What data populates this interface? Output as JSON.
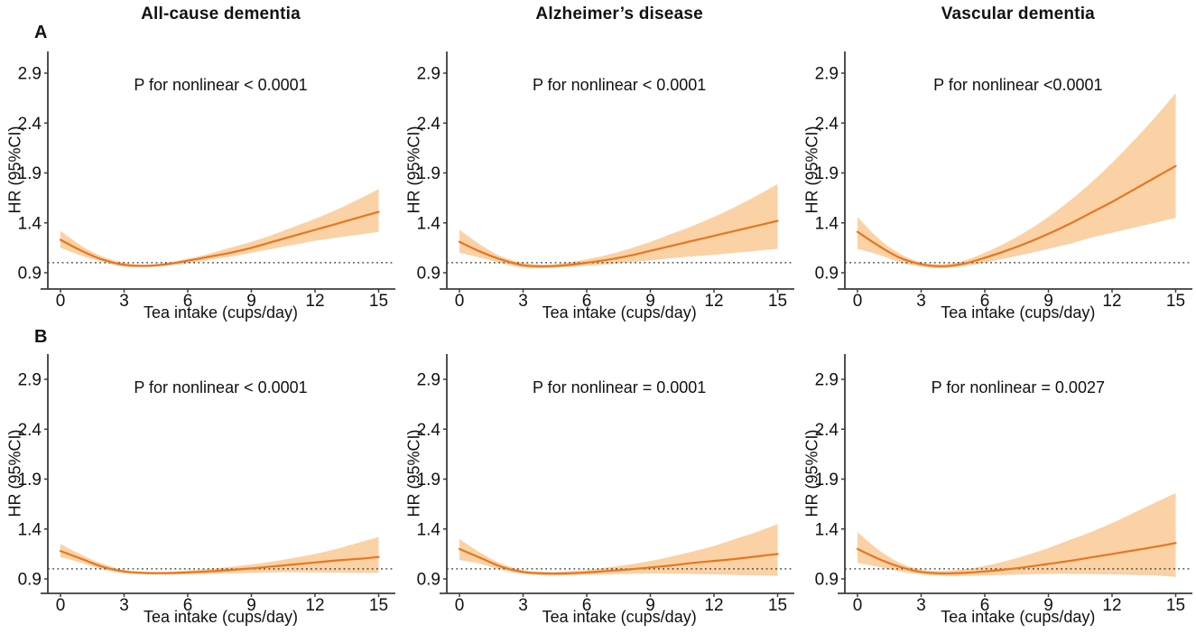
{
  "figure": {
    "background": "#ffffff",
    "section_labels": [
      "A",
      "B"
    ],
    "column_titles": [
      "All-cause dementia",
      "Alzheimer’s disease",
      "Vascular dementia"
    ],
    "colors": {
      "curve": "#e8761f",
      "band": "#fad2a6",
      "ref_line": "#2b2b2b",
      "axis": "#3d3d3d",
      "text": "#111111"
    }
  },
  "chart_data": [
    {
      "id": "A-all-cause-dementia",
      "row": "A",
      "type": "line",
      "column_title": "All-cause dementia",
      "p_label": "P for nonlinear < 0.0001",
      "xlabel": "Tea intake (cups/day)",
      "ylabel": "HR (95%CI)",
      "xticks": [
        0,
        3,
        6,
        9,
        12,
        15
      ],
      "ytick_values": [
        0.9,
        1.4,
        1.9,
        2.4,
        2.9
      ],
      "ytick_labels": [
        "0.9",
        "1.4",
        "1.9",
        "2.4",
        "2.9"
      ],
      "xlim": [
        -0.7,
        15.7
      ],
      "ylim": [
        0.74,
        3.12
      ],
      "ref_line": 1.0,
      "x": [
        0,
        1,
        2,
        3,
        4,
        5,
        6,
        7,
        8,
        9,
        10,
        11,
        12,
        13,
        14,
        15
      ],
      "hr": [
        1.23,
        1.12,
        1.03,
        0.98,
        0.97,
        0.985,
        1.02,
        1.06,
        1.1,
        1.15,
        1.21,
        1.27,
        1.33,
        1.39,
        1.45,
        1.51
      ],
      "ci_high": [
        1.32,
        1.17,
        1.06,
        1.0,
        0.98,
        1.0,
        1.04,
        1.09,
        1.15,
        1.21,
        1.28,
        1.36,
        1.44,
        1.53,
        1.63,
        1.74
      ],
      "ci_low": [
        1.15,
        1.07,
        1.01,
        0.96,
        0.955,
        0.97,
        0.995,
        1.03,
        1.06,
        1.1,
        1.14,
        1.18,
        1.22,
        1.25,
        1.28,
        1.31
      ]
    },
    {
      "id": "A-alzheimers-disease",
      "row": "A",
      "type": "line",
      "column_title": "Alzheimer’s disease",
      "p_label": "P for nonlinear < 0.0001",
      "xlabel": "Tea intake (cups/day)",
      "ylabel": "HR (95%CI)",
      "xticks": [
        0,
        3,
        6,
        9,
        12,
        15
      ],
      "ytick_values": [
        0.9,
        1.4,
        1.9,
        2.4,
        2.9
      ],
      "ytick_labels": [
        "0.9",
        "1.4",
        "1.9",
        "2.4",
        "2.9"
      ],
      "xlim": [
        -0.7,
        15.7
      ],
      "ylim": [
        0.74,
        3.12
      ],
      "ref_line": 1.0,
      "x": [
        0,
        1,
        2,
        3,
        4,
        5,
        6,
        7,
        8,
        9,
        10,
        11,
        12,
        13,
        14,
        15
      ],
      "hr": [
        1.21,
        1.11,
        1.03,
        0.975,
        0.965,
        0.975,
        1.0,
        1.03,
        1.07,
        1.12,
        1.17,
        1.22,
        1.27,
        1.32,
        1.37,
        1.42
      ],
      "ci_high": [
        1.33,
        1.18,
        1.06,
        1.0,
        0.98,
        1.0,
        1.035,
        1.08,
        1.14,
        1.21,
        1.29,
        1.37,
        1.46,
        1.56,
        1.67,
        1.79
      ],
      "ci_low": [
        1.1,
        1.05,
        0.995,
        0.95,
        0.945,
        0.955,
        0.97,
        0.985,
        1.005,
        1.025,
        1.045,
        1.065,
        1.08,
        1.1,
        1.12,
        1.14
      ]
    },
    {
      "id": "A-vascular-dementia",
      "row": "A",
      "type": "line",
      "column_title": "Vascular dementia",
      "p_label": "P for nonlinear <0.0001",
      "xlabel": "Tea intake (cups/day)",
      "ylabel": "HR (95%CI)",
      "xticks": [
        0,
        3,
        6,
        9,
        12,
        15
      ],
      "ytick_values": [
        0.9,
        1.4,
        1.9,
        2.4,
        2.9
      ],
      "ytick_labels": [
        "0.9",
        "1.4",
        "1.9",
        "2.4",
        "2.9"
      ],
      "xlim": [
        -0.7,
        15.7
      ],
      "ylim": [
        0.74,
        3.12
      ],
      "ref_line": 1.0,
      "x": [
        0,
        1,
        2,
        3,
        4,
        5,
        6,
        7,
        8,
        9,
        10,
        11,
        12,
        13,
        14,
        15
      ],
      "hr": [
        1.31,
        1.17,
        1.05,
        0.985,
        0.965,
        0.99,
        1.05,
        1.12,
        1.2,
        1.29,
        1.39,
        1.5,
        1.61,
        1.73,
        1.85,
        1.97
      ],
      "ci_high": [
        1.46,
        1.24,
        1.09,
        1.005,
        0.985,
        1.02,
        1.1,
        1.2,
        1.32,
        1.46,
        1.62,
        1.8,
        2.0,
        2.22,
        2.45,
        2.7
      ],
      "ci_low": [
        1.14,
        1.08,
        1.005,
        0.96,
        0.945,
        0.965,
        1.0,
        1.045,
        1.09,
        1.14,
        1.19,
        1.25,
        1.3,
        1.35,
        1.4,
        1.45
      ]
    },
    {
      "id": "B-all-cause-dementia",
      "row": "B",
      "type": "line",
      "column_title": "All-cause dementia",
      "p_label": "P for nonlinear < 0.0001",
      "xlabel": "Tea intake (cups/day)",
      "ylabel": "HR (95%CI)",
      "xticks": [
        0,
        3,
        6,
        9,
        12,
        15
      ],
      "ytick_values": [
        0.9,
        1.4,
        1.9,
        2.4,
        2.9
      ],
      "ytick_labels": [
        "0.9",
        "1.4",
        "1.9",
        "2.4",
        "2.9"
      ],
      "xlim": [
        -0.7,
        15.7
      ],
      "ylim": [
        0.74,
        3.12
      ],
      "ref_line": 1.0,
      "x": [
        0,
        1,
        2,
        3,
        4,
        5,
        6,
        7,
        8,
        9,
        10,
        11,
        12,
        13,
        14,
        15
      ],
      "hr": [
        1.18,
        1.1,
        1.02,
        0.975,
        0.96,
        0.958,
        0.965,
        0.975,
        0.99,
        1.005,
        1.025,
        1.045,
        1.065,
        1.085,
        1.1,
        1.12
      ],
      "ci_high": [
        1.25,
        1.14,
        1.05,
        0.99,
        0.97,
        0.97,
        0.985,
        1.0,
        1.02,
        1.045,
        1.075,
        1.11,
        1.15,
        1.2,
        1.26,
        1.32
      ],
      "ci_low": [
        1.12,
        1.06,
        0.995,
        0.955,
        0.945,
        0.943,
        0.945,
        0.95,
        0.955,
        0.96,
        0.965,
        0.968,
        0.965,
        0.963,
        0.96,
        0.96
      ]
    },
    {
      "id": "B-alzheimers-disease",
      "row": "B",
      "type": "line",
      "column_title": "Alzheimer’s disease",
      "p_label": "P for nonlinear = 0.0001",
      "xlabel": "Tea intake (cups/day)",
      "ylabel": "HR (95%CI)",
      "xticks": [
        0,
        3,
        6,
        9,
        12,
        15
      ],
      "ytick_values": [
        0.9,
        1.4,
        1.9,
        2.4,
        2.9
      ],
      "ytick_labels": [
        "0.9",
        "1.4",
        "1.9",
        "2.4",
        "2.9"
      ],
      "xlim": [
        -0.7,
        15.7
      ],
      "ylim": [
        0.74,
        3.12
      ],
      "ref_line": 1.0,
      "x": [
        0,
        1,
        2,
        3,
        4,
        5,
        6,
        7,
        8,
        9,
        10,
        11,
        12,
        13,
        14,
        15
      ],
      "hr": [
        1.2,
        1.11,
        1.02,
        0.97,
        0.955,
        0.955,
        0.965,
        0.98,
        0.995,
        1.015,
        1.035,
        1.06,
        1.08,
        1.1,
        1.125,
        1.15
      ],
      "ci_high": [
        1.3,
        1.16,
        1.05,
        0.99,
        0.97,
        0.975,
        0.99,
        1.015,
        1.045,
        1.08,
        1.125,
        1.175,
        1.23,
        1.3,
        1.37,
        1.45
      ],
      "ci_low": [
        1.09,
        1.05,
        0.99,
        0.95,
        0.935,
        0.935,
        0.94,
        0.945,
        0.95,
        0.953,
        0.952,
        0.95,
        0.945,
        0.94,
        0.935,
        0.93
      ]
    },
    {
      "id": "B-vascular-dementia",
      "row": "B",
      "type": "line",
      "column_title": "Vascular dementia",
      "p_label": "P for nonlinear = 0.0027",
      "xlabel": "Tea intake (cups/day)",
      "ylabel": "HR (95%CI)",
      "xticks": [
        0,
        3,
        6,
        9,
        12,
        15
      ],
      "ytick_values": [
        0.9,
        1.4,
        1.9,
        2.4,
        2.9
      ],
      "ytick_labels": [
        "0.9",
        "1.4",
        "1.9",
        "2.4",
        "2.9"
      ],
      "xlim": [
        -0.7,
        15.7
      ],
      "ylim": [
        0.74,
        3.12
      ],
      "ref_line": 1.0,
      "x": [
        0,
        1,
        2,
        3,
        4,
        5,
        6,
        7,
        8,
        9,
        10,
        11,
        12,
        13,
        14,
        15
      ],
      "hr": [
        1.2,
        1.1,
        1.02,
        0.97,
        0.955,
        0.96,
        0.975,
        0.995,
        1.02,
        1.05,
        1.08,
        1.115,
        1.15,
        1.185,
        1.22,
        1.26
      ],
      "ci_high": [
        1.37,
        1.19,
        1.06,
        0.995,
        0.98,
        0.995,
        1.03,
        1.08,
        1.14,
        1.21,
        1.29,
        1.37,
        1.46,
        1.56,
        1.66,
        1.76
      ],
      "ci_low": [
        1.06,
        1.02,
        0.975,
        0.945,
        0.93,
        0.93,
        0.935,
        0.94,
        0.945,
        0.95,
        0.95,
        0.948,
        0.945,
        0.94,
        0.935,
        0.92
      ]
    }
  ]
}
